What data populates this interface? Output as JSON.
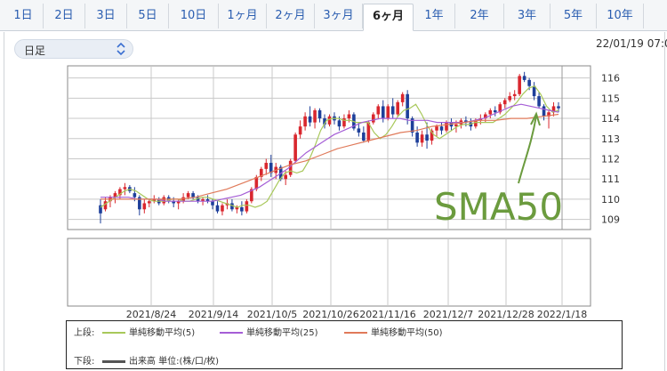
{
  "tabs": {
    "items": [
      "1日",
      "2日",
      "3日",
      "5日",
      "10日",
      "1ヶ月",
      "2ヶ月",
      "3ヶ月",
      "6ヶ月",
      "1年",
      "2年",
      "3年",
      "5年",
      "10年"
    ],
    "active_index": 8
  },
  "period_select": {
    "value": "日足"
  },
  "timestamp": "22/01/19 07:0",
  "chart_data": {
    "type": "candlestick",
    "x_tick_labels": [
      "2021/8/24",
      "2021/9/14",
      "2021/10/5",
      "2021/10/26",
      "2021/11/16",
      "2021/12/7",
      "2021/12/28",
      "2022/1/18"
    ],
    "y_tick_labels": [
      "116",
      "115",
      "114",
      "113",
      "112",
      "111",
      "110",
      "109"
    ],
    "ylim": [
      108.5,
      116.6
    ],
    "grid": true,
    "candles": [
      [
        109.7,
        110.0,
        108.8,
        109.3
      ],
      [
        109.5,
        110.1,
        109.4,
        109.9
      ],
      [
        109.9,
        110.2,
        109.6,
        110.1
      ],
      [
        110.1,
        110.4,
        109.8,
        110.3
      ],
      [
        110.2,
        110.6,
        110.0,
        110.5
      ],
      [
        110.5,
        110.8,
        110.2,
        110.6
      ],
      [
        110.6,
        110.7,
        110.3,
        110.4
      ],
      [
        110.3,
        110.6,
        109.9,
        110.1
      ],
      [
        110.1,
        110.2,
        109.2,
        109.5
      ],
      [
        109.5,
        110.0,
        109.3,
        109.8
      ],
      [
        109.8,
        110.0,
        109.6,
        109.9
      ],
      [
        109.9,
        110.2,
        109.8,
        110.0
      ],
      [
        110.0,
        110.1,
        109.7,
        109.8
      ],
      [
        109.8,
        110.2,
        109.7,
        110.1
      ],
      [
        110.1,
        110.2,
        109.8,
        109.9
      ],
      [
        109.9,
        110.1,
        109.6,
        109.8
      ],
      [
        109.8,
        110.0,
        109.5,
        109.9
      ],
      [
        109.9,
        110.3,
        109.8,
        110.1
      ],
      [
        110.1,
        110.4,
        110.0,
        110.3
      ],
      [
        110.3,
        110.4,
        110.0,
        110.1
      ],
      [
        110.1,
        110.2,
        109.8,
        109.9
      ],
      [
        109.9,
        110.1,
        109.7,
        110.0
      ],
      [
        110.0,
        110.2,
        109.8,
        109.9
      ],
      [
        109.9,
        110.0,
        109.5,
        109.7
      ],
      [
        109.7,
        109.9,
        109.3,
        109.4
      ],
      [
        109.4,
        109.8,
        109.2,
        109.7
      ],
      [
        109.7,
        110.0,
        109.5,
        109.8
      ],
      [
        109.8,
        110.0,
        109.4,
        109.5
      ],
      [
        109.5,
        109.7,
        109.3,
        109.6
      ],
      [
        109.6,
        109.9,
        109.2,
        109.4
      ],
      [
        109.4,
        110.0,
        109.3,
        109.9
      ],
      [
        109.9,
        110.6,
        109.8,
        110.5
      ],
      [
        110.5,
        111.2,
        110.4,
        111.1
      ],
      [
        111.1,
        111.6,
        110.9,
        111.5
      ],
      [
        111.5,
        112.0,
        111.2,
        111.8
      ],
      [
        111.8,
        112.2,
        111.1,
        111.3
      ],
      [
        111.3,
        111.8,
        111.0,
        111.6
      ],
      [
        111.6,
        111.7,
        110.9,
        111.0
      ],
      [
        111.0,
        111.4,
        110.7,
        111.2
      ],
      [
        111.2,
        112.0,
        111.1,
        111.9
      ],
      [
        111.9,
        113.3,
        111.8,
        113.2
      ],
      [
        113.2,
        113.9,
        113.0,
        113.6
      ],
      [
        113.6,
        114.3,
        113.4,
        114.1
      ],
      [
        114.1,
        114.6,
        113.6,
        113.8
      ],
      [
        113.8,
        114.5,
        113.5,
        114.4
      ],
      [
        114.4,
        114.5,
        113.8,
        114.0
      ],
      [
        114.0,
        114.2,
        113.5,
        113.7
      ],
      [
        113.7,
        114.2,
        113.6,
        114.1
      ],
      [
        114.1,
        114.3,
        113.7,
        113.9
      ],
      [
        113.9,
        114.1,
        113.4,
        113.6
      ],
      [
        113.6,
        114.2,
        113.5,
        114.0
      ],
      [
        114.0,
        114.4,
        113.8,
        114.2
      ],
      [
        114.2,
        114.3,
        113.4,
        113.5
      ],
      [
        113.5,
        113.8,
        113.1,
        113.3
      ],
      [
        113.3,
        113.6,
        112.8,
        112.9
      ],
      [
        112.9,
        113.9,
        112.8,
        113.8
      ],
      [
        113.8,
        114.3,
        113.7,
        114.2
      ],
      [
        114.2,
        114.7,
        114.0,
        114.6
      ],
      [
        114.6,
        114.9,
        113.8,
        114.0
      ],
      [
        114.0,
        114.7,
        113.9,
        114.6
      ],
      [
        114.6,
        115.0,
        114.0,
        114.2
      ],
      [
        114.2,
        114.9,
        114.1,
        114.8
      ],
      [
        114.8,
        115.3,
        114.6,
        115.2
      ],
      [
        115.2,
        115.4,
        113.7,
        114.0
      ],
      [
        114.0,
        114.1,
        113.1,
        113.3
      ],
      [
        113.3,
        113.6,
        112.6,
        112.8
      ],
      [
        112.8,
        113.4,
        112.6,
        113.2
      ],
      [
        113.2,
        113.8,
        112.5,
        112.9
      ],
      [
        112.9,
        113.5,
        112.7,
        113.4
      ],
      [
        113.4,
        113.7,
        113.1,
        113.6
      ],
      [
        113.6,
        113.8,
        113.2,
        113.4
      ],
      [
        113.4,
        113.9,
        113.3,
        113.8
      ],
      [
        113.8,
        114.0,
        113.4,
        113.6
      ],
      [
        113.6,
        113.9,
        113.3,
        113.7
      ],
      [
        113.7,
        114.0,
        113.5,
        113.9
      ],
      [
        113.9,
        114.1,
        113.6,
        113.8
      ],
      [
        113.8,
        114.0,
        113.4,
        113.6
      ],
      [
        113.6,
        114.0,
        113.5,
        113.9
      ],
      [
        113.9,
        114.2,
        113.7,
        114.0
      ],
      [
        114.0,
        114.3,
        113.8,
        114.2
      ],
      [
        114.2,
        114.5,
        114.0,
        114.4
      ],
      [
        114.4,
        114.6,
        114.1,
        114.3
      ],
      [
        114.3,
        114.8,
        114.2,
        114.7
      ],
      [
        114.7,
        115.0,
        114.5,
        114.9
      ],
      [
        114.9,
        115.3,
        114.8,
        115.1
      ],
      [
        115.1,
        115.4,
        114.9,
        115.2
      ],
      [
        115.2,
        116.2,
        115.1,
        116.1
      ],
      [
        116.1,
        116.3,
        115.8,
        115.9
      ],
      [
        115.9,
        116.0,
        115.4,
        115.6
      ],
      [
        115.6,
        115.8,
        114.9,
        115.1
      ],
      [
        115.1,
        115.3,
        114.5,
        114.6
      ],
      [
        114.6,
        114.7,
        113.9,
        114.1
      ],
      [
        114.1,
        114.4,
        113.5,
        114.3
      ],
      [
        114.3,
        114.8,
        114.1,
        114.6
      ],
      [
        114.6,
        114.8,
        114.3,
        114.5
      ]
    ],
    "series": [
      {
        "name": "単純移動平均(5)",
        "color": "#a8c85a",
        "values": [
          109.6,
          109.8,
          110.0,
          110.2,
          110.4,
          110.5,
          110.4,
          110.2,
          110.0,
          109.9,
          109.9,
          109.9,
          110.0,
          110.0,
          109.9,
          109.9,
          110.0,
          110.1,
          110.1,
          110.0,
          109.9,
          109.8,
          109.7,
          109.6,
          109.7,
          109.7,
          109.6,
          109.7,
          109.9,
          110.4,
          110.9,
          111.3,
          111.4,
          111.3,
          111.4,
          111.9,
          112.6,
          113.4,
          113.9,
          114.0,
          114.0,
          113.9,
          113.9,
          113.8,
          113.8,
          113.8,
          113.3,
          113.0,
          113.2,
          113.6,
          114.1,
          114.4,
          114.5,
          114.7,
          114.2,
          113.6,
          113.2,
          113.0,
          113.2,
          113.4,
          113.6,
          113.7,
          113.7,
          113.8,
          113.8,
          113.8,
          113.8,
          114.0,
          114.2,
          114.5,
          114.8,
          115.2,
          115.5,
          115.6,
          115.2,
          114.6,
          114.3,
          114.4
        ]
      },
      {
        "name": "単純移動平均(25)",
        "color": "#a55ed6",
        "values": [
          110.1,
          110.1,
          110.1,
          110.1,
          110.0,
          110.0,
          110.0,
          109.9,
          109.9,
          109.9,
          109.9,
          109.9,
          109.9,
          110.0,
          110.1,
          110.2,
          110.4,
          110.6,
          110.9,
          111.2,
          111.5,
          111.9,
          112.3,
          112.6,
          112.9,
          113.2,
          113.4,
          113.6,
          113.8,
          113.9,
          114.0,
          114.0,
          114.0,
          113.9,
          113.9,
          113.9,
          113.8,
          113.8,
          113.8,
          113.8,
          113.9,
          114.0,
          114.2,
          114.4,
          114.6,
          114.7,
          114.6,
          114.5,
          114.4,
          114.3
        ]
      },
      {
        "name": "単純移動平均(50)",
        "color": "#e07a5a",
        "values": [
          110.0,
          110.0,
          110.0,
          110.0,
          110.0,
          110.0,
          110.1,
          110.3,
          110.5,
          110.8,
          111.1,
          111.4,
          111.7,
          111.9,
          112.2,
          112.5,
          112.7,
          112.9,
          113.1,
          113.3,
          113.4,
          113.6,
          113.7,
          113.8,
          113.9,
          113.9,
          114.0,
          114.0,
          114.1,
          114.2
        ]
      }
    ],
    "volume_panel": {
      "values": []
    },
    "annotation": {
      "text": "SMA50",
      "color": "#6b9b3e"
    }
  },
  "legend": {
    "upper_label": "上段:",
    "lower_label": "下段:",
    "items": [
      {
        "label": "単純移動平均(5)",
        "color": "#a8c85a"
      },
      {
        "label": "単純移動平均(25)",
        "color": "#a55ed6"
      },
      {
        "label": "単純移動平均(50)",
        "color": "#e07a5a"
      }
    ],
    "volume_label": "出来高 単位:(株/口/枚)",
    "volume_color": "#555555"
  }
}
